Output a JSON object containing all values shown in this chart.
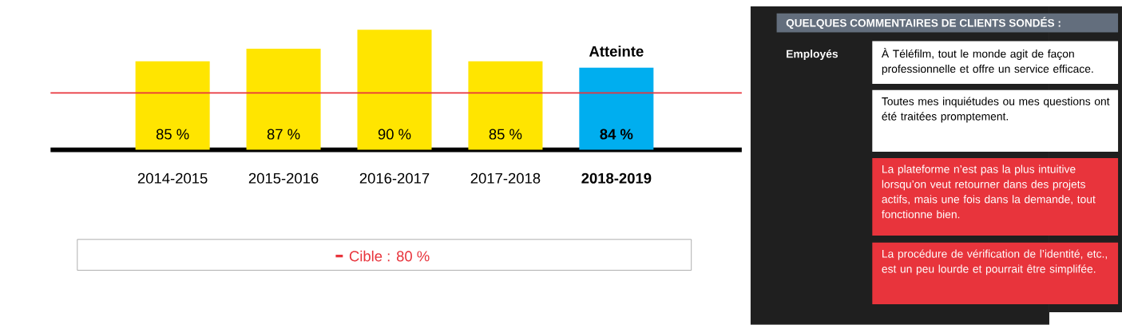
{
  "chart_data": {
    "type": "bar",
    "categories": [
      "2014-2015",
      "2015-2016",
      "2016-2017",
      "2017-2018",
      "2018-2019"
    ],
    "values": [
      85,
      87,
      90,
      85,
      84
    ],
    "colors": [
      "#ffe500",
      "#ffe500",
      "#ffe500",
      "#ffe500",
      "#00aeef"
    ],
    "value_labels": [
      "85 %",
      "87 %",
      "90 %",
      "85 %",
      "84 %"
    ],
    "ylim": [
      71,
      90
    ],
    "ref_lines": [
      {
        "axis": "y",
        "value": 80,
        "label": "Cible : 80 %",
        "color": "#e8343c"
      }
    ],
    "legend": "bottom",
    "annotations": [
      {
        "text": "Atteinte",
        "x": "2018-2019",
        "y": 84
      },
      "QUELQUES COMMENTAIRES DE CLIENTS SONDÉS :",
      "Employés",
      "À Téléfilm, tout le monde agit de façon professionnelle et offre un service efficace.",
      "Toutes mes inquiétudes ou mes questions ont été traitées promptement.",
      "La plateforme n’est pas la plus intuitive lorsqu’on veut retourner dans des projets actifs, mais une fois dans la demande, tout fonctionne bien.",
      "La procédure de vérification de l’identité, etc., est un peu lourde et pourrait être simplifée."
    ]
  }
}
